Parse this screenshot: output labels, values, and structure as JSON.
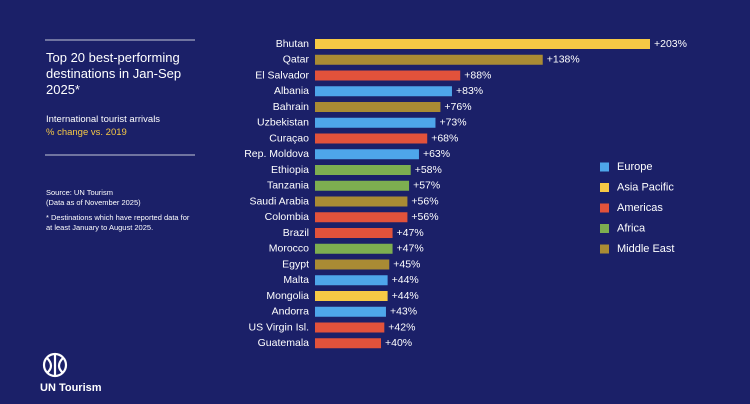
{
  "chart_data": {
    "type": "bar",
    "orientation": "horizontal",
    "title": "Top 20 best-performing destinations in Jan-Sep 2025*",
    "subtitle": "International tourist arrivals",
    "subtitle_note": "% change vs. 2019",
    "source": "Source: UN Tourism",
    "source_date": "(Data as of November 2025)",
    "footnote": "* Destinations which have reported data for at least January to August 2025.",
    "logo": "UN Tourism",
    "categories": [
      "Bhutan",
      "Qatar",
      "El Salvador",
      "Albania",
      "Bahrain",
      "Uzbekistan",
      "Curaçao",
      "Rep. Moldova",
      "Ethiopia",
      "Tanzania",
      "Saudi Arabia",
      "Colombia",
      "Brazil",
      "Morocco",
      "Egypt",
      "Malta",
      "Mongolia",
      "Andorra",
      "US Virgin Isl.",
      "Guatemala"
    ],
    "series": [
      {
        "name": "Europe",
        "color": "#4ea6ea",
        "values": [
          null,
          null,
          null,
          83,
          null,
          73,
          null,
          63,
          null,
          null,
          null,
          null,
          null,
          null,
          null,
          44,
          null,
          43,
          null,
          null
        ],
        "value_labels": [
          null,
          null,
          null,
          "+83%",
          null,
          "+73%",
          null,
          "+63%",
          null,
          null,
          null,
          null,
          null,
          null,
          null,
          "+44%",
          null,
          "+43%",
          null,
          null
        ]
      },
      {
        "name": "Asia Pacific",
        "color": "#f6c945",
        "values": [
          203,
          null,
          null,
          null,
          null,
          null,
          null,
          null,
          null,
          null,
          null,
          null,
          null,
          null,
          null,
          null,
          44,
          null,
          null,
          null
        ],
        "value_labels": [
          "+203%",
          null,
          null,
          null,
          null,
          null,
          null,
          null,
          null,
          null,
          null,
          null,
          null,
          null,
          null,
          null,
          "+44%",
          null,
          null,
          null
        ]
      },
      {
        "name": "Americas",
        "color": "#e2523b",
        "values": [
          null,
          null,
          88,
          null,
          null,
          null,
          68,
          null,
          null,
          null,
          null,
          56,
          47,
          null,
          null,
          null,
          null,
          null,
          42,
          40
        ],
        "value_labels": [
          null,
          null,
          "+88%",
          null,
          null,
          null,
          "+68%",
          null,
          null,
          null,
          null,
          "+56%",
          "+47%",
          null,
          null,
          null,
          null,
          null,
          "+42%",
          "+40%"
        ]
      },
      {
        "name": "Africa",
        "color": "#7dae50",
        "values": [
          null,
          null,
          null,
          null,
          null,
          null,
          null,
          null,
          58,
          57,
          null,
          null,
          null,
          47,
          null,
          null,
          null,
          null,
          null,
          null
        ],
        "value_labels": [
          null,
          null,
          null,
          null,
          null,
          null,
          null,
          null,
          "+58%",
          "+57%",
          null,
          null,
          null,
          "+47%",
          null,
          null,
          null,
          null,
          null,
          null
        ]
      },
      {
        "name": "Middle East",
        "color": "#a98b34",
        "values": [
          null,
          138,
          null,
          null,
          76,
          null,
          null,
          null,
          null,
          null,
          56,
          null,
          null,
          null,
          45,
          null,
          null,
          null,
          null,
          null
        ],
        "value_labels": [
          null,
          "+138%",
          null,
          null,
          "+76%",
          null,
          null,
          null,
          null,
          null,
          "+56%",
          null,
          null,
          null,
          "+45%",
          null,
          null,
          null,
          null,
          null
        ]
      }
    ]
  }
}
